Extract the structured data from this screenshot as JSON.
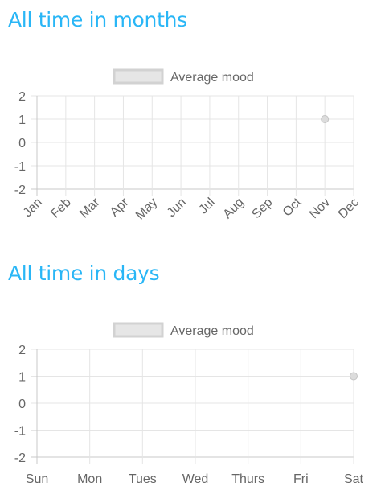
{
  "sections": [
    {
      "title": "All time in months"
    },
    {
      "title": "All time in days"
    }
  ],
  "colors": {
    "title": "#29b6f6",
    "grid": "#e5e5e5",
    "axis": "#c8c8c8",
    "legend_box_fill": "#e6e6e6",
    "legend_box_stroke": "#d2d2d2",
    "point_fill": "#dcdcdc",
    "point_stroke": "#c4c4c4",
    "text": "#666666"
  },
  "chart_data": [
    {
      "type": "line",
      "legend": [
        "Average mood"
      ],
      "legend_position": "top",
      "categories": [
        "Jan",
        "Feb",
        "Mar",
        "Apr",
        "May",
        "Jun",
        "Jul",
        "Aug",
        "Sep",
        "Oct",
        "Nov",
        "Dec"
      ],
      "series": [
        {
          "name": "Average mood",
          "values": [
            null,
            null,
            null,
            null,
            null,
            null,
            null,
            null,
            null,
            null,
            1,
            null
          ]
        }
      ],
      "yticks": [
        "2",
        "1",
        "0",
        "-1",
        "-2"
      ],
      "ylim": [
        -2,
        2
      ],
      "grid": true
    },
    {
      "type": "line",
      "legend": [
        "Average mood"
      ],
      "legend_position": "top",
      "categories": [
        "Sun",
        "Mon",
        "Tues",
        "Wed",
        "Thurs",
        "Fri",
        "Sat"
      ],
      "series": [
        {
          "name": "Average mood",
          "values": [
            null,
            null,
            null,
            null,
            null,
            null,
            1
          ]
        }
      ],
      "yticks": [
        "2",
        "1",
        "0",
        "-1",
        "-2"
      ],
      "ylim": [
        -2,
        2
      ],
      "grid": true
    }
  ]
}
